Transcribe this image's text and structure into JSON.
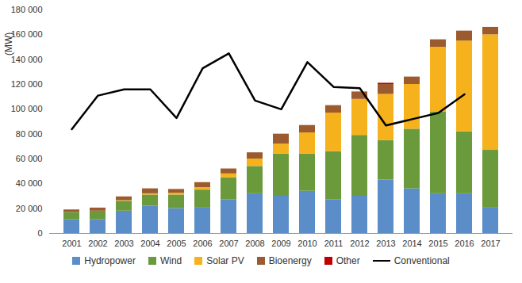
{
  "chart_data": {
    "type": "bar",
    "stacked": true,
    "grid": false,
    "legend": "bottom",
    "y_label": "(MW)",
    "categories": [
      "2001",
      "2002",
      "2003",
      "2004",
      "2005",
      "2006",
      "2007",
      "2008",
      "2009",
      "2010",
      "2011",
      "2012",
      "2013",
      "2014",
      "2015",
      "2016",
      "2017"
    ],
    "ylim": [
      0,
      180000
    ],
    "yticks": [
      0,
      {
        "value": 20000,
        "label": "20 000"
      },
      {
        "value": 40000,
        "label": "40 000"
      },
      {
        "value": 60000,
        "label": "60 000"
      },
      {
        "value": 80000,
        "label": "80 000"
      },
      {
        "value": 100000,
        "label": "100 000"
      },
      {
        "value": 120000,
        "label": "120 000"
      },
      {
        "value": 140000,
        "label": "140 000"
      },
      {
        "value": 160000,
        "label": "160 000"
      },
      {
        "value": 180000,
        "label": "180 000"
      }
    ],
    "series": [
      {
        "name": "Hydropower",
        "type": "bar",
        "color": "#5b8ec9",
        "values": [
          11000,
          11000,
          18000,
          22000,
          20000,
          21000,
          27000,
          32000,
          30000,
          34000,
          27000,
          30000,
          43000,
          36000,
          32000,
          32000,
          21000
        ]
      },
      {
        "name": "Wind",
        "type": "bar",
        "color": "#6b9a3c",
        "values": [
          6000,
          7000,
          8000,
          9000,
          11000,
          14000,
          18000,
          22000,
          34000,
          30000,
          39000,
          49000,
          32000,
          48000,
          66000,
          50000,
          46000
        ]
      },
      {
        "name": "Solar PV",
        "type": "bar",
        "color": "#f5b21c",
        "values": [
          0,
          0,
          500,
          1000,
          1500,
          2000,
          3000,
          6000,
          8000,
          17000,
          31000,
          29000,
          37000,
          36000,
          52000,
          73000,
          93000
        ]
      },
      {
        "name": "Bioenergy",
        "type": "bar",
        "color": "#9c5b2e",
        "values": [
          2000,
          2500,
          3000,
          4000,
          3000,
          4000,
          4000,
          5000,
          8000,
          6000,
          6000,
          6000,
          8000,
          6000,
          6000,
          8000,
          6000
        ]
      },
      {
        "name": "Other",
        "type": "bar",
        "color": "#c00000",
        "values": [
          0,
          0,
          0,
          0,
          0,
          0,
          0,
          0,
          0,
          0,
          0,
          0,
          1000,
          0,
          0,
          0,
          0
        ]
      },
      {
        "name": "Conventional",
        "type": "line",
        "color": "#000000",
        "values": [
          84000,
          111000,
          116000,
          116000,
          93000,
          133000,
          145000,
          107000,
          100000,
          138000,
          118000,
          117000,
          87000,
          92000,
          97000,
          112000,
          null
        ]
      }
    ]
  }
}
